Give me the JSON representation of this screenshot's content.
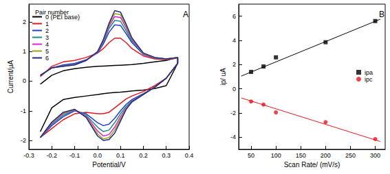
{
  "chart_data": [
    {
      "type": "line",
      "panel_label": "A",
      "legend_title": "Pair number",
      "x_label": "Potential/V",
      "y_label": "Current/μA",
      "xlim": [
        -0.3,
        0.4
      ],
      "xticks": [
        -0.3,
        -0.2,
        -0.1,
        {
          "value": 0,
          "label": "0.0"
        },
        0.1,
        0.2,
        0.3,
        0.4
      ],
      "ylim": [
        -2.3,
        2.6
      ],
      "yticks": [
        -2,
        -1,
        0,
        1,
        2
      ],
      "grid": false,
      "legend": "upper left",
      "x": [
        -0.25,
        -0.2,
        -0.15,
        -0.1,
        -0.05,
        0,
        0.025,
        0.05,
        0.075,
        0.1,
        0.125,
        0.15,
        0.2,
        0.25,
        0.3,
        0.35,
        0.35,
        0.3,
        0.25,
        0.2,
        0.15,
        0.125,
        0.1,
        0.075,
        0.05,
        0.025,
        0,
        -0.05,
        -0.1,
        -0.15,
        -0.2,
        -0.25
      ],
      "series": [
        {
          "name": "0 (PEI base)",
          "color": "#000000",
          "line_style": "solid",
          "values": [
            -0.1,
            0.2,
            0.35,
            0.42,
            0.47,
            0.5,
            0.51,
            0.52,
            0.53,
            0.54,
            0.55,
            0.56,
            0.6,
            0.65,
            0.7,
            0.8,
            0.6,
            -0.15,
            -0.25,
            -0.3,
            -0.33,
            -0.35,
            -0.37,
            -0.38,
            -0.4,
            -0.42,
            -0.45,
            -0.5,
            -0.55,
            -0.62,
            -0.9,
            -1.7
          ]
        },
        {
          "name": "1",
          "color": "#e8141c",
          "line_style": "solid",
          "values": [
            0.15,
            0.5,
            0.65,
            0.7,
            0.8,
            0.95,
            1.1,
            1.3,
            1.45,
            1.45,
            1.3,
            1.1,
            0.85,
            0.75,
            0.72,
            0.78,
            0.6,
            0.1,
            -0.15,
            -0.35,
            -0.5,
            -0.6,
            -0.75,
            -0.9,
            -1.05,
            -1.1,
            -1.1,
            -1.05,
            -1.1,
            -1.3,
            -1.6,
            -1.9
          ]
        },
        {
          "name": "2",
          "color": "#2040d0",
          "line_style": "solid",
          "values": [
            0.18,
            0.45,
            0.55,
            0.6,
            0.72,
            0.95,
            1.25,
            1.65,
            1.9,
            1.88,
            1.6,
            1.3,
            0.9,
            0.78,
            0.74,
            0.8,
            0.6,
            0.1,
            -0.2,
            -0.42,
            -0.62,
            -0.78,
            -1.0,
            -1.25,
            -1.45,
            -1.5,
            -1.4,
            -1.1,
            -1.0,
            -1.2,
            -1.5,
            -1.9
          ]
        },
        {
          "name": "3",
          "color": "#1a8a8a",
          "line_style": "solid",
          "values": [
            0.2,
            0.45,
            0.52,
            0.57,
            0.7,
            0.97,
            1.3,
            1.78,
            2.05,
            2.02,
            1.7,
            1.35,
            0.92,
            0.78,
            0.74,
            0.8,
            0.6,
            0.1,
            -0.2,
            -0.44,
            -0.66,
            -0.85,
            -1.1,
            -1.4,
            -1.65,
            -1.7,
            -1.55,
            -1.15,
            -0.98,
            -1.15,
            -1.45,
            -1.9
          ]
        },
        {
          "name": "4",
          "color": "#e020d0",
          "line_style": "solid",
          "values": [
            0.2,
            0.45,
            0.51,
            0.56,
            0.7,
            0.98,
            1.35,
            1.85,
            2.18,
            2.15,
            1.8,
            1.4,
            0.93,
            0.79,
            0.75,
            0.8,
            0.6,
            0.1,
            -0.2,
            -0.45,
            -0.68,
            -0.9,
            -1.2,
            -1.55,
            -1.8,
            -1.85,
            -1.68,
            -1.18,
            -0.97,
            -1.1,
            -1.42,
            -1.9
          ]
        },
        {
          "name": "5",
          "color": "#a0a010",
          "line_style": "solid",
          "values": [
            0.2,
            0.45,
            0.5,
            0.55,
            0.7,
            1.0,
            1.38,
            1.9,
            2.28,
            2.24,
            1.86,
            1.43,
            0.94,
            0.8,
            0.75,
            0.8,
            0.6,
            0.1,
            -0.2,
            -0.45,
            -0.7,
            -0.93,
            -1.28,
            -1.65,
            -1.9,
            -1.95,
            -1.78,
            -1.2,
            -0.96,
            -1.08,
            -1.4,
            -1.9
          ]
        },
        {
          "name": "6",
          "color": "#1a2a8a",
          "line_style": "solid",
          "values": [
            0.2,
            0.45,
            0.5,
            0.55,
            0.7,
            1.0,
            1.4,
            1.95,
            2.38,
            2.33,
            1.92,
            1.46,
            0.95,
            0.8,
            0.75,
            0.8,
            0.6,
            0.1,
            -0.2,
            -0.45,
            -0.7,
            -0.95,
            -1.35,
            -1.75,
            -1.97,
            -2.0,
            -1.85,
            -1.22,
            -0.95,
            -1.05,
            -1.38,
            -1.9
          ]
        }
      ]
    },
    {
      "type": "scatter",
      "panel_label": "B",
      "x_label": "Scan Rate/ (mV/s)",
      "y_label": "ip/ uA",
      "xlim": [
        25,
        320
      ],
      "xticks": [
        50,
        100,
        150,
        200,
        250,
        300
      ],
      "ylim": [
        -5,
        7
      ],
      "yticks": [
        -4,
        -2,
        0,
        2,
        4,
        6
      ],
      "grid": false,
      "legend": "right",
      "x": [
        50,
        75,
        100,
        200,
        300
      ],
      "series": [
        {
          "name": "ipa",
          "color": "#000000",
          "marker": "square",
          "values": [
            1.4,
            1.85,
            2.6,
            3.85,
            5.6
          ],
          "fit": {
            "x": [
              30,
              310
            ],
            "values": [
              1.05,
              5.75
            ]
          }
        },
        {
          "name": "ipc",
          "color": "#e8141c",
          "marker": "circle",
          "values": [
            -1.05,
            -1.3,
            -1.95,
            -2.75,
            -4.15
          ],
          "fit": {
            "x": [
              30,
              310
            ],
            "values": [
              -0.75,
              -4.35
            ]
          }
        }
      ]
    }
  ]
}
